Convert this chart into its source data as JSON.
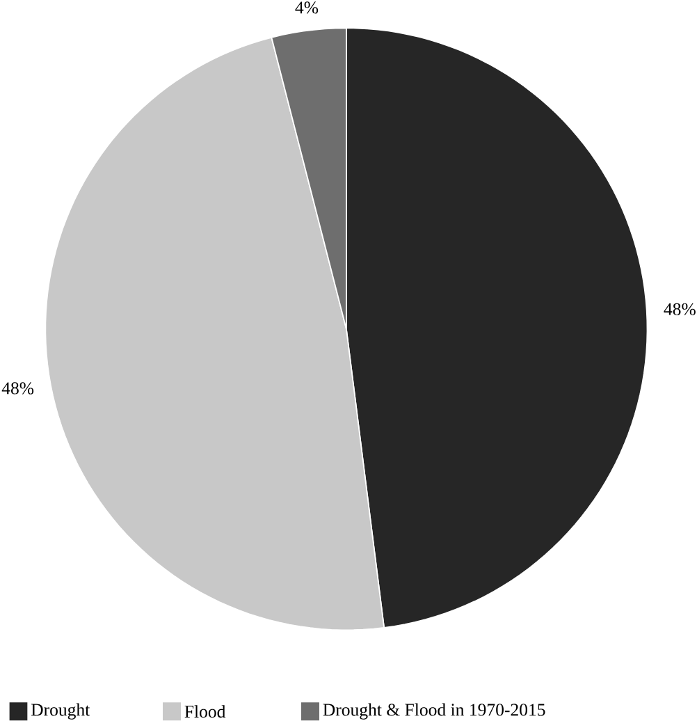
{
  "chart_data": {
    "type": "pie",
    "categories": [
      "Drought",
      "Flood",
      "Drought & Flood in 1970-2015"
    ],
    "values": [
      48,
      48,
      4
    ],
    "value_labels": [
      "48%",
      "48%",
      "4%"
    ],
    "colors": [
      "#262626",
      "#c8c8c8",
      "#6e6e6e"
    ],
    "legend": "bottom"
  }
}
